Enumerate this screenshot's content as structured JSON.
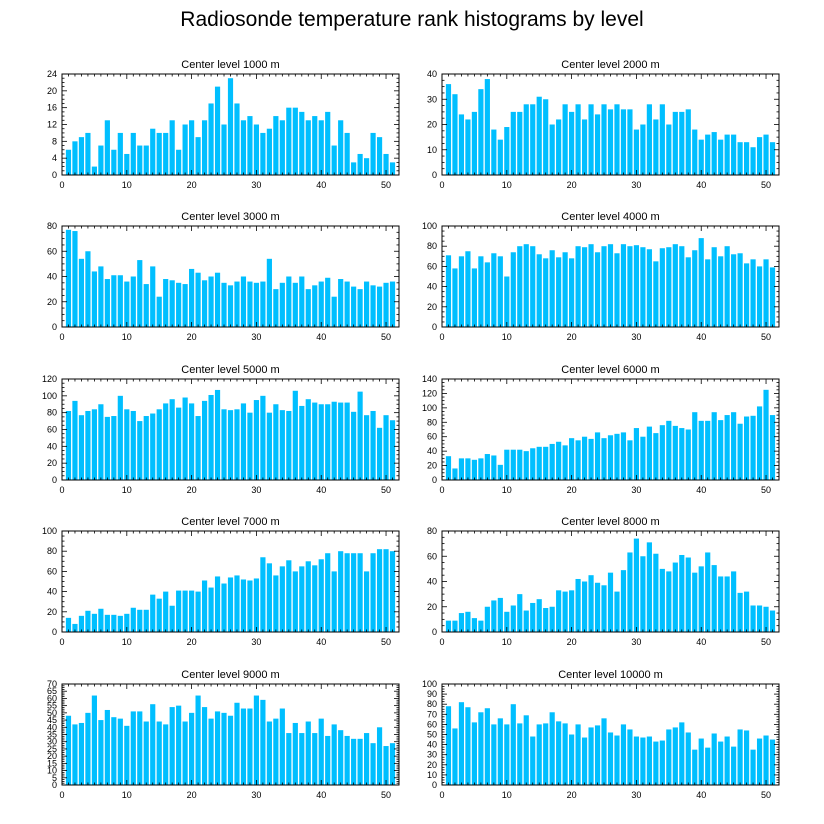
{
  "title": "Radiosonde temperature rank histograms by level",
  "colors": {
    "bar": "#00BFFF",
    "axis": "#000000",
    "background": "#ffffff"
  },
  "chart_data": [
    {
      "type": "bar",
      "title": "Center level 1000 m",
      "x": [
        1,
        2,
        3,
        4,
        5,
        6,
        7,
        8,
        9,
        10,
        11,
        12,
        13,
        14,
        15,
        16,
        17,
        18,
        19,
        20,
        21,
        22,
        23,
        24,
        25,
        26,
        27,
        28,
        29,
        30,
        31,
        32,
        33,
        34,
        35,
        36,
        37,
        38,
        39,
        40,
        41,
        42,
        43,
        44,
        45,
        46,
        47,
        48,
        49,
        50,
        51
      ],
      "values": [
        6,
        8,
        9,
        10,
        2,
        7,
        13,
        6,
        10,
        5,
        10,
        7,
        7,
        11,
        10,
        10,
        13,
        6,
        12,
        13,
        9,
        13,
        17,
        21,
        12,
        23,
        17,
        13,
        14,
        12,
        10,
        11,
        14,
        13,
        16,
        16,
        15,
        13,
        14,
        13,
        15,
        7,
        13,
        10,
        3,
        5,
        4,
        10,
        9,
        5,
        3
      ],
      "xlim": [
        0,
        52
      ],
      "ylim": [
        0,
        24
      ],
      "xticks": [
        0,
        10,
        20,
        30,
        40,
        50
      ],
      "yticks": [
        0,
        4,
        8,
        12,
        16,
        20,
        24
      ]
    },
    {
      "type": "bar",
      "title": "Center level 2000 m",
      "x": [
        1,
        2,
        3,
        4,
        5,
        6,
        7,
        8,
        9,
        10,
        11,
        12,
        13,
        14,
        15,
        16,
        17,
        18,
        19,
        20,
        21,
        22,
        23,
        24,
        25,
        26,
        27,
        28,
        29,
        30,
        31,
        32,
        33,
        34,
        35,
        36,
        37,
        38,
        39,
        40,
        41,
        42,
        43,
        44,
        45,
        46,
        47,
        48,
        49,
        50,
        51
      ],
      "values": [
        36,
        32,
        24,
        22,
        25,
        34,
        38,
        18,
        14,
        19,
        25,
        25,
        28,
        28,
        31,
        30,
        20,
        22,
        28,
        25,
        28,
        22,
        28,
        24,
        28,
        26,
        28,
        26,
        26,
        18,
        20,
        28,
        22,
        28,
        20,
        25,
        25,
        26,
        18,
        14,
        16,
        17,
        14,
        16,
        16,
        13,
        13,
        11,
        15,
        16,
        13
      ],
      "xlim": [
        0,
        52
      ],
      "ylim": [
        0,
        40
      ],
      "xticks": [
        0,
        10,
        20,
        30,
        40,
        50
      ],
      "yticks": [
        0,
        10,
        20,
        30,
        40
      ]
    },
    {
      "type": "bar",
      "title": "Center level 3000 m",
      "x": [
        1,
        2,
        3,
        4,
        5,
        6,
        7,
        8,
        9,
        10,
        11,
        12,
        13,
        14,
        15,
        16,
        17,
        18,
        19,
        20,
        21,
        22,
        23,
        24,
        25,
        26,
        27,
        28,
        29,
        30,
        31,
        32,
        33,
        34,
        35,
        36,
        37,
        38,
        39,
        40,
        41,
        42,
        43,
        44,
        45,
        46,
        47,
        48,
        49,
        50,
        51
      ],
      "values": [
        77,
        76,
        54,
        60,
        44,
        48,
        38,
        41,
        41,
        36,
        40,
        53,
        34,
        48,
        24,
        38,
        37,
        35,
        34,
        46,
        43,
        37,
        40,
        43,
        35,
        33,
        36,
        40,
        36,
        35,
        36,
        54,
        30,
        35,
        40,
        35,
        40,
        30,
        33,
        36,
        39,
        24,
        38,
        36,
        32,
        30,
        36,
        33,
        32,
        35,
        36
      ],
      "xlim": [
        0,
        52
      ],
      "ylim": [
        0,
        80
      ],
      "xticks": [
        0,
        10,
        20,
        30,
        40,
        50
      ],
      "yticks": [
        0,
        20,
        40,
        60,
        80
      ]
    },
    {
      "type": "bar",
      "title": "Center level 4000 m",
      "x": [
        1,
        2,
        3,
        4,
        5,
        6,
        7,
        8,
        9,
        10,
        11,
        12,
        13,
        14,
        15,
        16,
        17,
        18,
        19,
        20,
        21,
        22,
        23,
        24,
        25,
        26,
        27,
        28,
        29,
        30,
        31,
        32,
        33,
        34,
        35,
        36,
        37,
        38,
        39,
        40,
        41,
        42,
        43,
        44,
        45,
        46,
        47,
        48,
        49,
        50,
        51
      ],
      "values": [
        71,
        58,
        70,
        75,
        58,
        70,
        64,
        73,
        70,
        50,
        74,
        80,
        82,
        80,
        72,
        68,
        76,
        69,
        74,
        68,
        80,
        79,
        82,
        74,
        80,
        82,
        73,
        82,
        80,
        81,
        79,
        77,
        65,
        78,
        79,
        82,
        80,
        69,
        76,
        88,
        67,
        79,
        70,
        80,
        72,
        73,
        63,
        67,
        60,
        67,
        59
      ],
      "xlim": [
        0,
        52
      ],
      "ylim": [
        0,
        100
      ],
      "xticks": [
        0,
        10,
        20,
        30,
        40,
        50
      ],
      "yticks": [
        0,
        20,
        40,
        60,
        80,
        100
      ]
    },
    {
      "type": "bar",
      "title": "Center level 5000 m",
      "x": [
        1,
        2,
        3,
        4,
        5,
        6,
        7,
        8,
        9,
        10,
        11,
        12,
        13,
        14,
        15,
        16,
        17,
        18,
        19,
        20,
        21,
        22,
        23,
        24,
        25,
        26,
        27,
        28,
        29,
        30,
        31,
        32,
        33,
        34,
        35,
        36,
        37,
        38,
        39,
        40,
        41,
        42,
        43,
        44,
        45,
        46,
        47,
        48,
        49,
        50,
        51
      ],
      "values": [
        82,
        94,
        77,
        82,
        84,
        90,
        75,
        76,
        100,
        84,
        82,
        70,
        76,
        79,
        84,
        91,
        96,
        86,
        98,
        91,
        76,
        94,
        101,
        107,
        84,
        83,
        84,
        91,
        80,
        95,
        100,
        80,
        90,
        83,
        82,
        106,
        88,
        96,
        92,
        90,
        90,
        93,
        92,
        92,
        81,
        105,
        77,
        82,
        62,
        77,
        71
      ],
      "xlim": [
        0,
        52
      ],
      "ylim": [
        0,
        120
      ],
      "xticks": [
        0,
        10,
        20,
        30,
        40,
        50
      ],
      "yticks": [
        0,
        20,
        40,
        60,
        80,
        100,
        120
      ]
    },
    {
      "type": "bar",
      "title": "Center level 6000 m",
      "x": [
        1,
        2,
        3,
        4,
        5,
        6,
        7,
        8,
        9,
        10,
        11,
        12,
        13,
        14,
        15,
        16,
        17,
        18,
        19,
        20,
        21,
        22,
        23,
        24,
        25,
        26,
        27,
        28,
        29,
        30,
        31,
        32,
        33,
        34,
        35,
        36,
        37,
        38,
        39,
        40,
        41,
        42,
        43,
        44,
        45,
        46,
        47,
        48,
        49,
        50,
        51
      ],
      "values": [
        33,
        16,
        30,
        30,
        28,
        30,
        36,
        34,
        21,
        42,
        42,
        42,
        40,
        44,
        46,
        46,
        50,
        53,
        48,
        58,
        55,
        60,
        57,
        66,
        58,
        62,
        64,
        66,
        55,
        72,
        60,
        74,
        65,
        76,
        82,
        75,
        72,
        70,
        94,
        82,
        82,
        94,
        83,
        90,
        94,
        78,
        88,
        89,
        102,
        125,
        90
      ],
      "xlim": [
        0,
        52
      ],
      "ylim": [
        0,
        140
      ],
      "xticks": [
        0,
        10,
        20,
        30,
        40,
        50
      ],
      "yticks": [
        0,
        20,
        40,
        60,
        80,
        100,
        120,
        140
      ]
    },
    {
      "type": "bar",
      "title": "Center level 7000 m",
      "x": [
        1,
        2,
        3,
        4,
        5,
        6,
        7,
        8,
        9,
        10,
        11,
        12,
        13,
        14,
        15,
        16,
        17,
        18,
        19,
        20,
        21,
        22,
        23,
        24,
        25,
        26,
        27,
        28,
        29,
        30,
        31,
        32,
        33,
        34,
        35,
        36,
        37,
        38,
        39,
        40,
        41,
        42,
        43,
        44,
        45,
        46,
        47,
        48,
        49,
        50,
        51
      ],
      "values": [
        14,
        8,
        16,
        21,
        18,
        23,
        17,
        17,
        16,
        18,
        24,
        22,
        22,
        37,
        33,
        40,
        26,
        41,
        41,
        41,
        40,
        51,
        44,
        55,
        48,
        54,
        56,
        52,
        51,
        53,
        74,
        68,
        56,
        65,
        71,
        60,
        65,
        70,
        66,
        72,
        78,
        60,
        80,
        78,
        78,
        78,
        60,
        78,
        82,
        82,
        80
      ],
      "xlim": [
        0,
        52
      ],
      "ylim": [
        0,
        100
      ],
      "xticks": [
        0,
        10,
        20,
        30,
        40,
        50
      ],
      "yticks": [
        0,
        20,
        40,
        60,
        80,
        100
      ]
    },
    {
      "type": "bar",
      "title": "Center level 8000 m",
      "x": [
        1,
        2,
        3,
        4,
        5,
        6,
        7,
        8,
        9,
        10,
        11,
        12,
        13,
        14,
        15,
        16,
        17,
        18,
        19,
        20,
        21,
        22,
        23,
        24,
        25,
        26,
        27,
        28,
        29,
        30,
        31,
        32,
        33,
        34,
        35,
        36,
        37,
        38,
        39,
        40,
        41,
        42,
        43,
        44,
        45,
        46,
        47,
        48,
        49,
        50,
        51
      ],
      "values": [
        9,
        9,
        15,
        16,
        11,
        9,
        20,
        25,
        27,
        16,
        21,
        30,
        17,
        23,
        26,
        19,
        20,
        33,
        32,
        33,
        42,
        40,
        45,
        39,
        37,
        47,
        32,
        49,
        63,
        74,
        60,
        71,
        62,
        50,
        48,
        55,
        61,
        59,
        47,
        52,
        63,
        53,
        44,
        44,
        48,
        31,
        32,
        21,
        21,
        20,
        17
      ],
      "xlim": [
        0,
        52
      ],
      "ylim": [
        0,
        80
      ],
      "xticks": [
        0,
        10,
        20,
        30,
        40,
        50
      ],
      "yticks": [
        0,
        20,
        40,
        60,
        80
      ]
    },
    {
      "type": "bar",
      "title": "Center level 9000 m",
      "x": [
        1,
        2,
        3,
        4,
        5,
        6,
        7,
        8,
        9,
        10,
        11,
        12,
        13,
        14,
        15,
        16,
        17,
        18,
        19,
        20,
        21,
        22,
        23,
        24,
        25,
        26,
        27,
        28,
        29,
        30,
        31,
        32,
        33,
        34,
        35,
        36,
        37,
        38,
        39,
        40,
        41,
        42,
        43,
        44,
        45,
        46,
        47,
        48,
        49,
        50,
        51
      ],
      "values": [
        48,
        42,
        43,
        50,
        62,
        45,
        52,
        47,
        46,
        41,
        51,
        51,
        44,
        56,
        44,
        42,
        54,
        55,
        44,
        50,
        62,
        54,
        46,
        51,
        50,
        48,
        57,
        53,
        53,
        62,
        59,
        44,
        46,
        53,
        36,
        43,
        36,
        44,
        36,
        46,
        34,
        42,
        38,
        34,
        32,
        32,
        36,
        29,
        40,
        27,
        29
      ],
      "xlim": [
        0,
        52
      ],
      "ylim": [
        0,
        70
      ],
      "xticks": [
        0,
        10,
        20,
        30,
        40,
        50
      ],
      "yticks": [
        0,
        5,
        10,
        15,
        20,
        25,
        30,
        35,
        40,
        45,
        50,
        55,
        60,
        65,
        70
      ]
    },
    {
      "type": "bar",
      "title": "Center level 10000 m",
      "x": [
        1,
        2,
        3,
        4,
        5,
        6,
        7,
        8,
        9,
        10,
        11,
        12,
        13,
        14,
        15,
        16,
        17,
        18,
        19,
        20,
        21,
        22,
        23,
        24,
        25,
        26,
        27,
        28,
        29,
        30,
        31,
        32,
        33,
        34,
        35,
        36,
        37,
        38,
        39,
        40,
        41,
        42,
        43,
        44,
        45,
        46,
        47,
        48,
        49,
        50,
        51
      ],
      "values": [
        78,
        56,
        82,
        77,
        62,
        72,
        76,
        60,
        66,
        60,
        80,
        61,
        69,
        48,
        60,
        61,
        72,
        63,
        61,
        50,
        60,
        47,
        57,
        59,
        66,
        52,
        49,
        60,
        55,
        48,
        47,
        48,
        43,
        44,
        55,
        57,
        62,
        52,
        35,
        46,
        37,
        51,
        43,
        48,
        38,
        55,
        54,
        35,
        46,
        49,
        45
      ],
      "xlim": [
        0,
        52
      ],
      "ylim": [
        0,
        100
      ],
      "xticks": [
        0,
        10,
        20,
        30,
        40,
        50
      ],
      "yticks": [
        0,
        10,
        20,
        30,
        40,
        50,
        60,
        70,
        80,
        90,
        100
      ]
    }
  ]
}
